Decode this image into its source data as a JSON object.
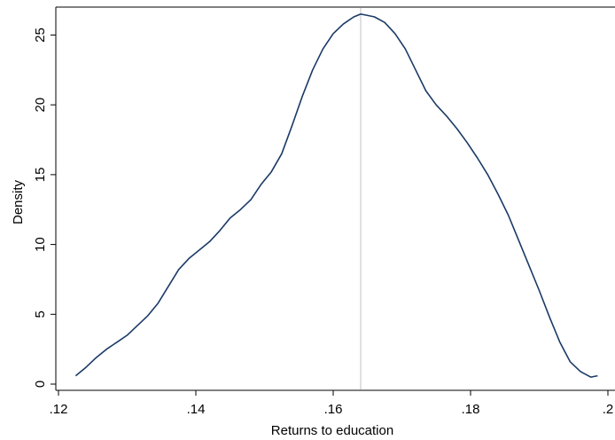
{
  "chart_data": {
    "type": "line",
    "xlabel": "Returns to education",
    "ylabel": "Density",
    "xlim": [
      0.12,
      0.2
    ],
    "ylim": [
      0,
      27
    ],
    "xticks": [
      {
        "value": 0.12,
        "label": ".12"
      },
      {
        "value": 0.14,
        "label": ".14"
      },
      {
        "value": 0.16,
        "label": ".16"
      },
      {
        "value": 0.18,
        "label": ".18"
      },
      {
        "value": 0.2,
        "label": ".2"
      }
    ],
    "yticks": [
      {
        "value": 0,
        "label": "0"
      },
      {
        "value": 5,
        "label": "5"
      },
      {
        "value": 10,
        "label": "10"
      },
      {
        "value": 15,
        "label": "15"
      },
      {
        "value": 20,
        "label": "20"
      },
      {
        "value": 25,
        "label": "25"
      }
    ],
    "grid": false,
    "legend": "none",
    "reference_line": {
      "x": 0.164,
      "color": "#cccccc"
    },
    "series": [
      {
        "color": "#1a3a66",
        "x": [
          0.1225,
          0.124,
          0.1255,
          0.127,
          0.1285,
          0.13,
          0.1315,
          0.133,
          0.1345,
          0.136,
          0.1375,
          0.139,
          0.1405,
          0.142,
          0.1435,
          0.145,
          0.1465,
          0.148,
          0.1495,
          0.151,
          0.1525,
          0.154,
          0.1555,
          0.157,
          0.1585,
          0.16,
          0.1615,
          0.163,
          0.164,
          0.165,
          0.166,
          0.1675,
          0.169,
          0.1705,
          0.172,
          0.1735,
          0.175,
          0.1765,
          0.178,
          0.1795,
          0.181,
          0.1825,
          0.184,
          0.1855,
          0.187,
          0.1885,
          0.19,
          0.1915,
          0.193,
          0.1945,
          0.196,
          0.1975,
          0.1985
        ],
        "y": [
          0.6,
          1.2,
          1.9,
          2.5,
          3.0,
          3.5,
          4.2,
          4.9,
          5.8,
          7.0,
          8.2,
          9.0,
          9.6,
          10.2,
          11.0,
          11.9,
          12.5,
          13.2,
          14.3,
          15.2,
          16.5,
          18.5,
          20.6,
          22.5,
          24.0,
          25.1,
          25.8,
          26.3,
          26.5,
          26.4,
          26.3,
          25.9,
          25.1,
          24.0,
          22.5,
          21.0,
          20.0,
          19.2,
          18.3,
          17.3,
          16.2,
          15.0,
          13.6,
          12.1,
          10.3,
          8.5,
          6.7,
          4.8,
          3.0,
          1.6,
          0.9,
          0.5,
          0.6
        ]
      }
    ]
  },
  "colors": {
    "line": "#1a3a66",
    "reference_line": "#cccccc",
    "axis": "#000000",
    "background": "#ffffff"
  }
}
